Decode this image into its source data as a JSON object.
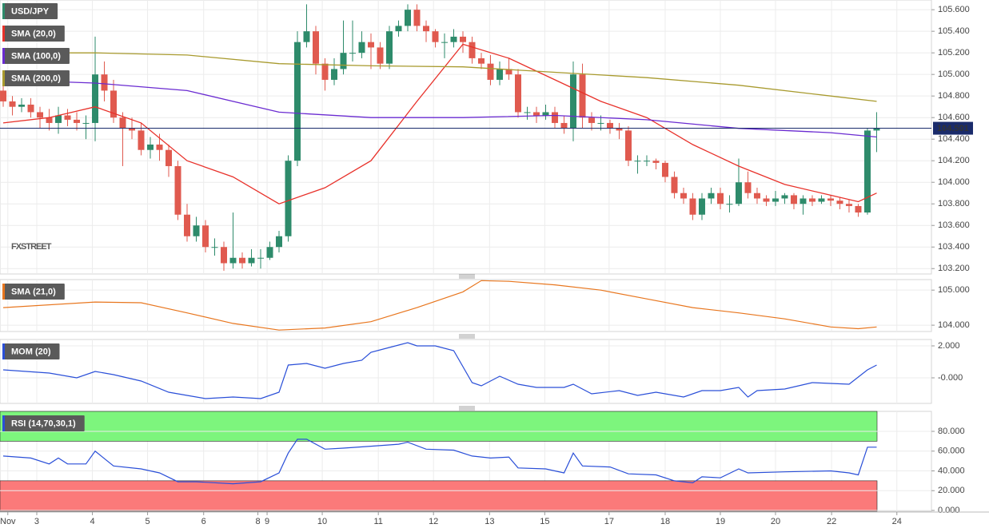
{
  "chart_data": [
    {
      "type": "candlestick",
      "title": "USD/JPY",
      "watermark": "FXSTREET",
      "grid": true,
      "up_color": "#2e8b6b",
      "down_color": "#e05a4f",
      "open": [
        104.85,
        104.75,
        104.7,
        104.72,
        104.65,
        104.6,
        104.55,
        104.62,
        104.58,
        104.55,
        104.55,
        105.0,
        104.85,
        104.6,
        104.5,
        104.48,
        104.3,
        104.35,
        104.3,
        104.15,
        103.7,
        103.5,
        103.6,
        103.4,
        103.4,
        103.25,
        103.3,
        103.25,
        103.3,
        103.3,
        103.4,
        103.5,
        104.2,
        105.3,
        105.4,
        105.1,
        104.95,
        105.05,
        105.2,
        105.2,
        105.3,
        105.25,
        105.1,
        105.4,
        105.45,
        105.6,
        105.45,
        105.4,
        105.3,
        105.3,
        105.35,
        105.3,
        105.15,
        105.1,
        104.95,
        105.05,
        105.0,
        104.65,
        104.65,
        104.62,
        104.65,
        104.55,
        104.5,
        105.0,
        104.6,
        104.55,
        104.55,
        104.5,
        104.48,
        104.2,
        104.2,
        104.2,
        104.18,
        104.05,
        103.9,
        103.85,
        103.7,
        103.85,
        103.9,
        103.8,
        103.8,
        104.0,
        103.9,
        103.85,
        103.82,
        103.85,
        103.88,
        103.8,
        103.85,
        103.82,
        103.85,
        103.83,
        103.8,
        103.78,
        103.72,
        104.48
      ],
      "high": [
        104.9,
        104.8,
        104.78,
        104.78,
        104.7,
        104.68,
        104.7,
        104.68,
        104.65,
        104.62,
        105.35,
        105.12,
        104.95,
        104.65,
        104.6,
        104.55,
        104.42,
        104.45,
        104.35,
        104.2,
        103.8,
        103.68,
        103.65,
        103.48,
        103.45,
        103.72,
        103.35,
        103.38,
        103.38,
        103.45,
        103.55,
        104.25,
        105.4,
        105.65,
        105.45,
        105.15,
        105.15,
        105.5,
        105.5,
        105.4,
        105.38,
        105.3,
        105.45,
        105.5,
        105.65,
        105.65,
        105.5,
        105.42,
        105.38,
        105.42,
        105.4,
        105.35,
        105.2,
        105.18,
        105.12,
        105.15,
        105.05,
        104.7,
        104.7,
        104.72,
        104.7,
        104.62,
        105.12,
        105.1,
        104.65,
        104.62,
        104.58,
        104.55,
        104.52,
        104.25,
        104.25,
        104.22,
        104.2,
        104.1,
        103.95,
        103.9,
        103.9,
        103.95,
        103.95,
        103.88,
        104.22,
        104.1,
        103.95,
        103.88,
        103.92,
        103.9,
        103.9,
        103.88,
        103.88,
        103.88,
        103.88,
        103.86,
        103.84,
        103.8,
        104.5,
        104.65
      ],
      "low": [
        104.7,
        104.62,
        104.65,
        104.6,
        104.5,
        104.48,
        104.45,
        104.52,
        104.48,
        104.4,
        104.38,
        104.75,
        104.55,
        104.15,
        104.4,
        104.25,
        104.22,
        104.2,
        104.05,
        103.65,
        103.45,
        103.45,
        103.35,
        103.32,
        103.18,
        103.2,
        103.2,
        103.22,
        103.2,
        103.28,
        103.35,
        103.45,
        104.15,
        105.25,
        105.0,
        104.85,
        104.9,
        105.0,
        105.12,
        105.15,
        105.05,
        105.05,
        105.05,
        105.35,
        105.4,
        105.4,
        105.3,
        105.25,
        105.15,
        105.25,
        105.2,
        105.1,
        105.05,
        104.9,
        104.9,
        104.95,
        104.6,
        104.58,
        104.55,
        104.58,
        104.5,
        104.45,
        104.38,
        104.5,
        104.48,
        104.48,
        104.45,
        104.4,
        104.15,
        104.08,
        104.15,
        104.12,
        104.0,
        103.85,
        103.8,
        103.65,
        103.65,
        103.8,
        103.75,
        103.72,
        103.78,
        103.85,
        103.8,
        103.78,
        103.78,
        103.8,
        103.75,
        103.7,
        103.78,
        103.8,
        103.78,
        103.75,
        103.72,
        103.68,
        103.7,
        104.28
      ],
      "close": [
        104.75,
        104.7,
        104.72,
        104.65,
        104.6,
        104.55,
        104.62,
        104.58,
        104.55,
        104.55,
        105.0,
        104.85,
        104.6,
        104.5,
        104.48,
        104.3,
        104.35,
        104.3,
        104.15,
        103.7,
        103.5,
        103.6,
        103.4,
        103.4,
        103.25,
        103.3,
        103.25,
        103.3,
        103.3,
        103.4,
        103.5,
        104.2,
        105.3,
        105.4,
        105.1,
        104.95,
        105.05,
        105.2,
        105.2,
        105.3,
        105.25,
        105.1,
        105.4,
        105.45,
        105.6,
        105.45,
        105.4,
        105.3,
        105.3,
        105.35,
        105.3,
        105.15,
        105.1,
        104.95,
        105.05,
        105.0,
        104.65,
        104.65,
        104.62,
        104.65,
        104.55,
        104.5,
        105.0,
        104.6,
        104.55,
        104.55,
        104.5,
        104.48,
        104.2,
        104.2,
        104.2,
        104.18,
        104.05,
        103.9,
        103.85,
        103.7,
        103.85,
        103.9,
        103.8,
        103.8,
        104.0,
        103.9,
        103.85,
        103.82,
        103.85,
        103.88,
        103.8,
        103.85,
        103.82,
        103.85,
        103.83,
        103.8,
        103.78,
        103.72,
        104.48,
        104.5
      ],
      "overlays": [
        {
          "name": "SMA (20,0)",
          "color": "#e8312a",
          "x": [
            0,
            5,
            10,
            15,
            20,
            25,
            30,
            35,
            40,
            45,
            50,
            55,
            60,
            65,
            70,
            75,
            80,
            85,
            90,
            93,
            95
          ],
          "values": [
            104.55,
            104.6,
            104.7,
            104.55,
            104.2,
            104.05,
            103.8,
            103.95,
            104.2,
            104.75,
            105.28,
            105.15,
            104.95,
            104.75,
            104.6,
            104.35,
            104.15,
            103.98,
            103.88,
            103.82,
            103.9
          ]
        },
        {
          "name": "SMA (100,0)",
          "color": "#6a2bd1",
          "x": [
            0,
            10,
            20,
            30,
            40,
            50,
            60,
            70,
            80,
            90,
            95
          ],
          "values": [
            104.95,
            104.92,
            104.85,
            104.65,
            104.6,
            104.6,
            104.62,
            104.58,
            104.5,
            104.46,
            104.42
          ]
        },
        {
          "name": "SMA (200,0)",
          "color": "#a89a2e",
          "x": [
            0,
            10,
            20,
            30,
            40,
            50,
            60,
            70,
            80,
            90,
            95
          ],
          "values": [
            105.2,
            105.2,
            105.18,
            105.1,
            105.08,
            105.07,
            105.02,
            104.97,
            104.9,
            104.8,
            104.75
          ]
        }
      ],
      "last_price": 104.501,
      "last_price_color": "#1a2b6b",
      "xlim": [
        -0.35,
        100.96
      ],
      "xticks": [
        {
          "value": 0.5,
          "label": "Nov"
        },
        {
          "value": 3.65,
          "label": "3"
        },
        {
          "value": 9.7,
          "label": "4"
        },
        {
          "value": 15.7,
          "label": "5"
        },
        {
          "value": 21.8,
          "label": "6"
        },
        {
          "value": 27.7,
          "label": "8"
        },
        {
          "value": 28.7,
          "label": "9"
        },
        {
          "value": 34.7,
          "label": "10"
        },
        {
          "value": 40.8,
          "label": "11"
        },
        {
          "value": 46.8,
          "label": "12"
        },
        {
          "value": 52.9,
          "label": "13"
        },
        {
          "value": 58.9,
          "label": "15"
        },
        {
          "value": 65.9,
          "label": "17"
        },
        {
          "value": 72,
          "label": "18"
        },
        {
          "value": 78,
          "label": "19"
        },
        {
          "value": 84,
          "label": "20"
        },
        {
          "value": 90.1,
          "label": "22"
        },
        {
          "value": 97.2,
          "label": "24"
        }
      ],
      "ylim": [
        103.15,
        105.69
      ],
      "yticks": [
        {
          "value": 103.2,
          "label": "103.200"
        },
        {
          "value": 103.4,
          "label": "103.400"
        },
        {
          "value": 103.6,
          "label": "103.600"
        },
        {
          "value": 103.8,
          "label": "103.800"
        },
        {
          "value": 104.0,
          "label": "104.000"
        },
        {
          "value": 104.2,
          "label": "104.200"
        },
        {
          "value": 104.4,
          "label": "104.400"
        },
        {
          "value": 104.6,
          "label": "104.600"
        },
        {
          "value": 104.8,
          "label": "104.800"
        },
        {
          "value": 105.0,
          "label": "105.000"
        },
        {
          "value": 105.2,
          "label": "105.200"
        },
        {
          "value": 105.4,
          "label": "105.400"
        },
        {
          "value": 105.6,
          "label": "105.600"
        }
      ]
    },
    {
      "type": "line",
      "title": "SMA (21,0)",
      "color": "#e8761e",
      "x": [
        0,
        10,
        15,
        20,
        25,
        30,
        35,
        40,
        45,
        50,
        52,
        55,
        60,
        65,
        70,
        75,
        80,
        85,
        90,
        93,
        95
      ],
      "values": [
        104.5,
        104.66,
        104.64,
        104.35,
        104.05,
        103.86,
        103.92,
        104.1,
        104.5,
        104.95,
        105.27,
        105.25,
        105.15,
        105.0,
        104.75,
        104.5,
        104.35,
        104.18,
        103.95,
        103.9,
        103.95
      ],
      "ylim": [
        103.82,
        105.3
      ],
      "yticks": [
        {
          "value": 104,
          "label": "104.000"
        },
        {
          "value": 105,
          "label": "105.000"
        }
      ]
    },
    {
      "type": "line",
      "title": "MOM (20)",
      "color": "#2a4fd8",
      "x": [
        0,
        5,
        8,
        10,
        12,
        15,
        18,
        20,
        22,
        25,
        28,
        30,
        31,
        33,
        35,
        37,
        39,
        40,
        42,
        44,
        45,
        47,
        49,
        51,
        52,
        54,
        56,
        58,
        61,
        62,
        64,
        67,
        69,
        71,
        74,
        76,
        78,
        80,
        81,
        82,
        85,
        88,
        92,
        94,
        95
      ],
      "values": [
        0.5,
        0.3,
        0,
        0.4,
        0.2,
        -0.2,
        -0.9,
        -1.1,
        -1.3,
        -1.2,
        -1.3,
        -0.9,
        0.8,
        0.9,
        0.6,
        0.9,
        1.1,
        1.6,
        1.9,
        2.2,
        2.0,
        2.0,
        1.7,
        -0.3,
        -0.5,
        0.1,
        -0.4,
        -0.6,
        -0.6,
        -0.4,
        -1.0,
        -0.8,
        -1.1,
        -0.9,
        -1.2,
        -0.8,
        -0.8,
        -0.6,
        -1.2,
        -0.8,
        -0.7,
        -0.3,
        -0.4,
        0.5,
        0.8
      ],
      "ylim": [
        -1.6,
        2.4
      ],
      "yticks": [
        {
          "value": 0,
          "label": "-0.000"
        },
        {
          "value": 2,
          "label": "2.000"
        }
      ]
    },
    {
      "type": "line",
      "title": "RSI (14,70,30,1)",
      "color": "#2a4fd8",
      "overbought": 70,
      "oversold": 30,
      "overbought_color": "#7df57d",
      "oversold_color": "#fb7a7a",
      "x": [
        0,
        3,
        5,
        6,
        7,
        9,
        10,
        12,
        15,
        17,
        19,
        21,
        25,
        28,
        30,
        31,
        32,
        33,
        35,
        37,
        40,
        43,
        44,
        46,
        49,
        51,
        53,
        55,
        56,
        59,
        61,
        62,
        63,
        66,
        68,
        71,
        73,
        75,
        76,
        78,
        80,
        81,
        85,
        90,
        92,
        93,
        94,
        95
      ],
      "values": [
        55,
        53,
        47,
        53,
        47,
        47,
        60,
        45,
        42,
        38,
        29,
        29,
        27,
        29,
        38,
        58,
        72,
        72,
        62,
        63,
        65,
        67,
        69,
        62,
        61,
        55,
        53,
        54,
        43,
        42,
        38,
        58,
        45,
        44,
        37,
        36,
        30,
        28,
        34,
        33,
        42,
        38,
        39,
        40,
        38,
        36,
        64,
        64
      ],
      "ylim": [
        -0.8,
        100.2
      ],
      "yticks": [
        {
          "value": 0,
          "label": "0.000"
        },
        {
          "value": 20,
          "label": "20.000"
        },
        {
          "value": 40,
          "label": "40.000"
        },
        {
          "value": 60,
          "label": "60.000"
        },
        {
          "value": 80,
          "label": "80.000"
        }
      ]
    }
  ]
}
